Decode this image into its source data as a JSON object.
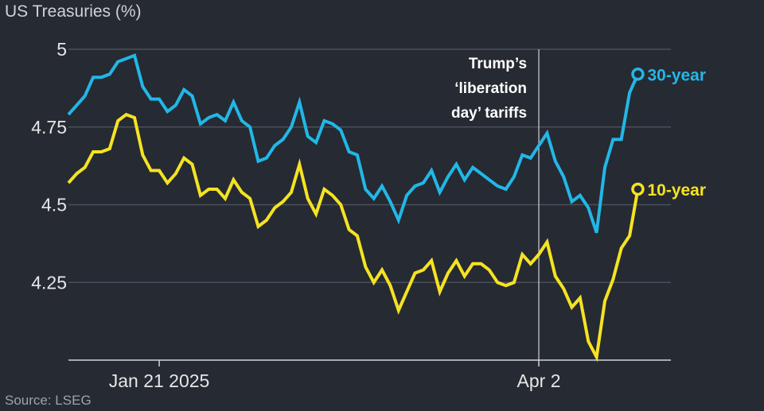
{
  "chart_data": {
    "type": "line",
    "title": "US Treasuries (%)",
    "source": "Source: LSEG",
    "ylim": [
      4.0,
      5.0
    ],
    "yticks": [
      4.25,
      4.5,
      4.75,
      5
    ],
    "ytick_labels": [
      "4.25",
      "4.5",
      "4.75",
      "5"
    ],
    "x_index_range": [
      0,
      65
    ],
    "xticks": [
      {
        "index": 11,
        "label": "Jan 21 2025"
      },
      {
        "index": 57,
        "label": "Apr 2"
      }
    ],
    "event_line": {
      "index": 57,
      "lines": [
        "Trump’s",
        "‘liberation",
        "day’ tariffs"
      ]
    },
    "grid": "horizontal",
    "colors": {
      "background": "#262a33",
      "grid": "#4a4f59",
      "axis": "#d0d3d8",
      "event": "#d0d3d8"
    },
    "series": [
      {
        "name": "30-year",
        "color": "#22b7e6",
        "end_marker": true,
        "values": [
          4.79,
          4.82,
          4.85,
          4.91,
          4.91,
          4.92,
          4.96,
          4.97,
          4.98,
          4.88,
          4.84,
          4.84,
          4.8,
          4.82,
          4.87,
          4.85,
          4.76,
          4.78,
          4.79,
          4.77,
          4.83,
          4.77,
          4.75,
          4.64,
          4.65,
          4.69,
          4.71,
          4.75,
          4.83,
          4.72,
          4.7,
          4.77,
          4.76,
          4.74,
          4.67,
          4.66,
          4.55,
          4.52,
          4.56,
          4.51,
          4.45,
          4.53,
          4.56,
          4.57,
          4.61,
          4.54,
          4.59,
          4.63,
          4.58,
          4.62,
          4.6,
          4.58,
          4.56,
          4.55,
          4.59,
          4.66,
          4.65,
          4.69,
          4.73,
          4.64,
          4.59,
          4.51,
          4.53,
          4.49,
          4.41,
          4.62,
          4.71,
          4.71,
          4.86,
          4.92
        ]
      },
      {
        "name": "10-year",
        "color": "#f5e321",
        "end_marker": true,
        "values": [
          4.57,
          4.6,
          4.62,
          4.67,
          4.67,
          4.68,
          4.77,
          4.79,
          4.78,
          4.66,
          4.61,
          4.61,
          4.57,
          4.6,
          4.65,
          4.63,
          4.53,
          4.55,
          4.55,
          4.52,
          4.58,
          4.54,
          4.52,
          4.43,
          4.45,
          4.49,
          4.51,
          4.54,
          4.63,
          4.52,
          4.47,
          4.55,
          4.53,
          4.5,
          4.42,
          4.4,
          4.3,
          4.25,
          4.29,
          4.24,
          4.16,
          4.22,
          4.28,
          4.29,
          4.32,
          4.22,
          4.28,
          4.32,
          4.27,
          4.31,
          4.31,
          4.29,
          4.25,
          4.24,
          4.25,
          4.34,
          4.31,
          4.34,
          4.38,
          4.27,
          4.23,
          4.17,
          4.2,
          4.06,
          4.01,
          4.19,
          4.26,
          4.36,
          4.4,
          4.55
        ]
      }
    ]
  }
}
